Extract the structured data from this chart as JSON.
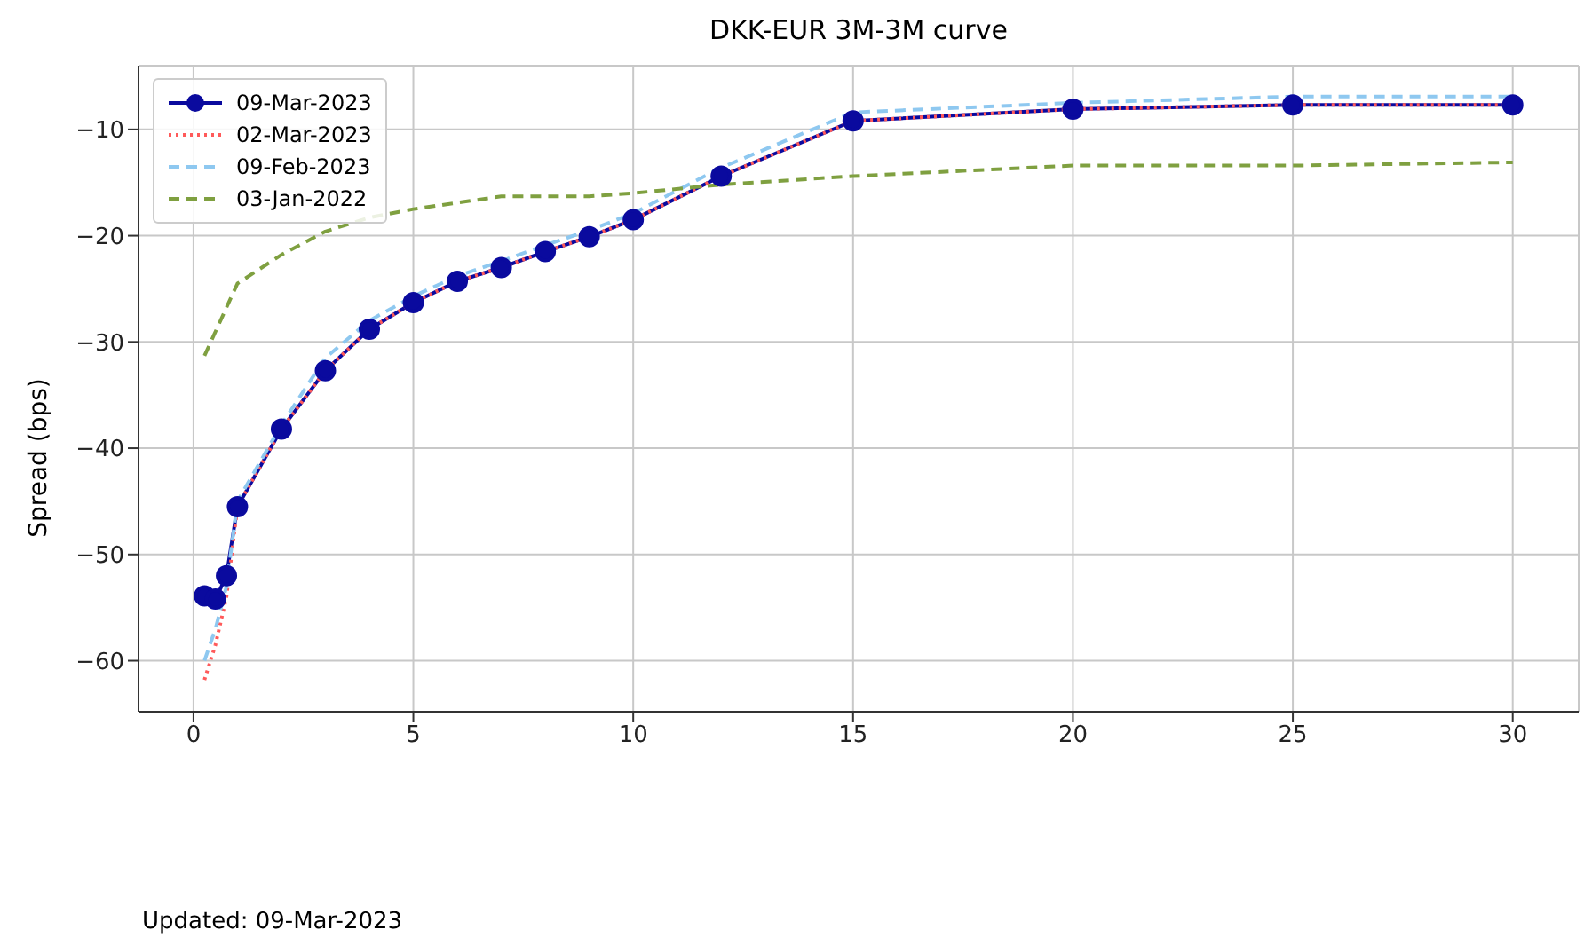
{
  "chart_data": {
    "type": "line",
    "title": "DKK-EUR 3M-3M curve",
    "ylabel": "Spread (bps)",
    "annotations": [
      "Updated: 09-Mar-2023"
    ],
    "xlim": [
      -1.25,
      31.5
    ],
    "xticks": [
      0,
      5,
      10,
      15,
      20,
      25,
      30
    ],
    "ylim": [
      -64.8,
      -4
    ],
    "yticks": [
      -60,
      -50,
      -40,
      -30,
      -20,
      -10
    ],
    "grid": true,
    "legend": "top left",
    "series": [
      {
        "name": "09-Mar-2023",
        "color": "#0a0a9e",
        "marker": "circle",
        "line_style": "solid",
        "x": [
          0.25,
          0.5,
          0.75,
          1,
          2,
          3,
          4,
          5,
          6,
          7,
          8,
          9,
          10,
          12,
          15,
          20,
          25,
          30
        ],
        "values": [
          -53.9,
          -54.2,
          -52.0,
          -45.5,
          -38.2,
          -32.7,
          -28.8,
          -26.3,
          -24.3,
          -23.0,
          -21.5,
          -20.1,
          -18.5,
          -14.4,
          -9.2,
          -8.1,
          -7.7,
          -7.7
        ]
      },
      {
        "name": "02-Mar-2023",
        "color": "#ff5a5a",
        "marker": "none",
        "line_style": "dotted",
        "x": [
          0.25,
          0.5,
          0.75,
          1,
          2,
          3,
          4,
          5,
          6,
          7,
          8,
          9,
          10,
          12,
          15,
          20,
          25,
          30
        ],
        "values": [
          -61.8,
          -58.5,
          -54.0,
          -45.5,
          -38.2,
          -32.7,
          -28.8,
          -26.3,
          -24.3,
          -23.0,
          -21.5,
          -20.1,
          -18.5,
          -14.4,
          -9.2,
          -8.1,
          -7.7,
          -7.7
        ]
      },
      {
        "name": "09-Feb-2023",
        "color": "#8ec8f0",
        "marker": "none",
        "line_style": "dashed",
        "x": [
          0.25,
          0.5,
          0.75,
          1,
          2,
          3,
          4,
          5,
          6,
          7,
          8,
          9,
          10,
          12,
          15,
          20,
          25,
          30
        ],
        "values": [
          -60.0,
          -57.0,
          -53.0,
          -45.0,
          -37.8,
          -31.5,
          -28.0,
          -25.7,
          -23.8,
          -22.4,
          -20.9,
          -19.5,
          -17.9,
          -13.6,
          -8.4,
          -7.5,
          -6.9,
          -6.9
        ]
      },
      {
        "name": "03-Jan-2022",
        "color": "#7fa040",
        "marker": "none",
        "line_style": "dashed",
        "x": [
          0.25,
          1,
          2,
          3,
          4,
          5,
          6,
          7,
          8,
          9,
          10,
          12,
          15,
          20,
          25,
          30
        ],
        "values": [
          -31.3,
          -24.5,
          -21.8,
          -19.6,
          -18.3,
          -17.5,
          -16.9,
          -16.3,
          -16.3,
          -16.3,
          -16.0,
          -15.2,
          -14.4,
          -13.4,
          -13.4,
          -13.1
        ]
      }
    ]
  }
}
